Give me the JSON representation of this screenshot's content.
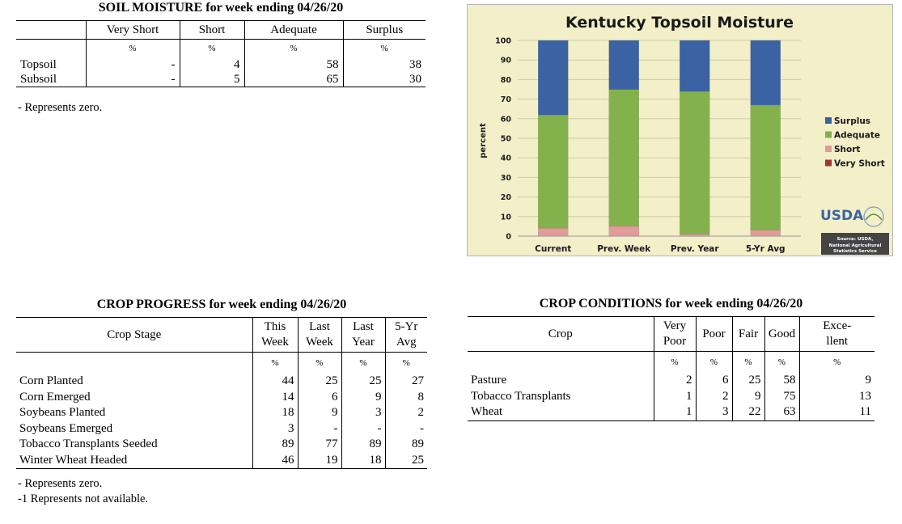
{
  "soil": {
    "title": "SOIL MOISTURE for week ending 04/26/20",
    "columns": [
      "Very Short",
      "Short",
      "Adequate",
      "Surplus"
    ],
    "unit": "%",
    "rows": [
      {
        "label": "Topsoil",
        "values": [
          "-",
          "4",
          "58",
          "38"
        ]
      },
      {
        "label": "Subsoil",
        "values": [
          "-",
          "5",
          "65",
          "30"
        ]
      }
    ],
    "note": "- Represents zero."
  },
  "chart_data": {
    "type": "bar",
    "stacked": true,
    "title": "Kentucky Topsoil Moisture",
    "ylabel": "percent",
    "xlabel": "",
    "ylim": [
      0,
      100
    ],
    "yticks": [
      "0",
      "10",
      "20",
      "30",
      "40",
      "50",
      "60",
      "70",
      "80",
      "90",
      "100"
    ],
    "categories": [
      "Current",
      "Prev. Week",
      "Prev. Year",
      "5-Yr Avg"
    ],
    "series": [
      {
        "name": "Very Short",
        "color": "#a3332e",
        "values": [
          0,
          0,
          0,
          0
        ]
      },
      {
        "name": "Short",
        "color": "#e39a9b",
        "values": [
          4,
          5,
          1,
          3
        ]
      },
      {
        "name": "Adequate",
        "color": "#83b14c",
        "values": [
          58,
          70,
          73,
          64
        ]
      },
      {
        "name": "Surplus",
        "color": "#3b63a3",
        "values": [
          38,
          25,
          26,
          33
        ]
      }
    ],
    "legend_order": [
      "Surplus",
      "Adequate",
      "Short",
      "Very Short"
    ],
    "legend_position": "right",
    "grid": true,
    "logo_text": "USDA",
    "source_lines": [
      "Source: USDA,",
      "National Agricultural",
      "Statistics Service"
    ]
  },
  "progress": {
    "title": "CROP PROGRESS for week ending 04/26/20",
    "stage_header": "Crop Stage",
    "columns": [
      [
        "This",
        "Week"
      ],
      [
        "Last",
        "Week"
      ],
      [
        "Last",
        "Year"
      ],
      [
        "5-Yr",
        "Avg"
      ]
    ],
    "unit": "%",
    "rows": [
      {
        "label": "Corn Planted",
        "values": [
          "44",
          "25",
          "25",
          "27"
        ]
      },
      {
        "label": "Corn Emerged",
        "values": [
          "14",
          "6",
          "9",
          "8"
        ]
      },
      {
        "label": "Soybeans Planted",
        "values": [
          "18",
          "9",
          "3",
          "2"
        ]
      },
      {
        "label": "Soybeans Emerged",
        "values": [
          "3",
          "-",
          "-",
          "-"
        ]
      },
      {
        "label": "Tobacco Transplants Seeded",
        "values": [
          "89",
          "77",
          "89",
          "89"
        ]
      },
      {
        "label": "Winter Wheat Headed",
        "values": [
          "46",
          "19",
          "18",
          "25"
        ]
      }
    ],
    "notes": [
      "- Represents zero.",
      "-1 Represents not available."
    ]
  },
  "conditions": {
    "title": "CROP CONDITIONS for week ending 04/26/20",
    "crop_header": "Crop",
    "columns": [
      [
        "Very",
        "Poor"
      ],
      [
        "Poor"
      ],
      [
        "Fair"
      ],
      [
        "Good"
      ],
      [
        "Exce-",
        "llent"
      ]
    ],
    "unit": "%",
    "rows": [
      {
        "label": "Pasture",
        "values": [
          "2",
          "6",
          "25",
          "58",
          "9"
        ]
      },
      {
        "label": "Tobacco Transplants",
        "values": [
          "1",
          "2",
          "9",
          "75",
          "13"
        ]
      },
      {
        "label": "Wheat",
        "values": [
          "1",
          "3",
          "22",
          "63",
          "11"
        ]
      }
    ]
  }
}
